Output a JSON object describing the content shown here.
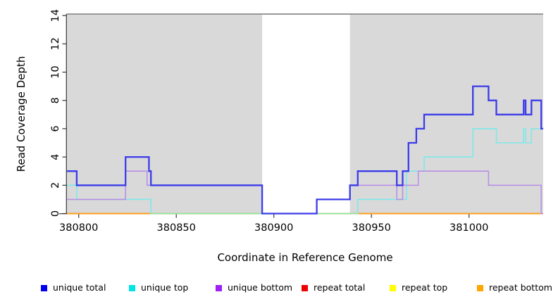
{
  "figure": {
    "x_axis": {
      "label": "Coordinate in Reference Genome",
      "ticks": [
        380800,
        380850,
        380900,
        380950,
        381000
      ]
    },
    "y_axis": {
      "label": "Read Coverage Depth",
      "ticks": [
        0,
        2,
        4,
        6,
        8,
        10,
        12,
        14
      ]
    }
  },
  "chart_data": {
    "type": "line",
    "step": true,
    "title": "",
    "xlabel": "Coordinate in Reference Genome",
    "ylabel": "Read Coverage Depth",
    "xlim": [
      380794,
      381038
    ],
    "ylim": [
      0,
      14.1
    ],
    "x_ticks": [
      380800,
      380850,
      380900,
      380950,
      381000
    ],
    "y_ticks": [
      0,
      2,
      4,
      6,
      8,
      10,
      12,
      14
    ],
    "grid": false,
    "shade_color": "#d9d9d9",
    "shaded_x_regions": [
      [
        380794,
        380894
      ],
      [
        380939,
        381038
      ]
    ],
    "series": [
      {
        "name": "repeat total",
        "color": "#e03030",
        "line_width": 1.4,
        "end": 381038,
        "points": [
          [
            380794,
            0
          ]
        ]
      },
      {
        "name": "repeat top",
        "color": "#f5f263",
        "line_width": 1.4,
        "end": 381038,
        "points": [
          [
            380794,
            0
          ]
        ]
      },
      {
        "name": "repeat bottom",
        "color": "#ff9e1f",
        "line_width": 2.0,
        "end": 381038,
        "points": [
          [
            380794,
            0
          ]
        ]
      },
      {
        "name": "unique top",
        "color": "#7de9e9",
        "line_width": 1.6,
        "end": 381038,
        "points": [
          [
            380794,
            2
          ],
          [
            380799,
            1
          ],
          [
            380837,
            0
          ],
          [
            380943,
            1
          ],
          [
            380968,
            3
          ],
          [
            380977,
            4
          ],
          [
            381002,
            6
          ],
          [
            381014,
            5
          ],
          [
            381028,
            6
          ],
          [
            381029,
            5
          ],
          [
            381032,
            6
          ]
        ]
      },
      {
        "name": "zero-line-blend",
        "color": "#93e6a4",
        "line_width": 1.4,
        "end": 380943,
        "points": [
          [
            380837,
            0
          ]
        ]
      },
      {
        "name": "unique bottom",
        "color": "#b98fe6",
        "line_width": 1.6,
        "end": 381038,
        "points": [
          [
            380794,
            1
          ],
          [
            380824,
            3
          ],
          [
            380835,
            2
          ],
          [
            380894,
            0
          ],
          [
            380922,
            1
          ],
          [
            380939,
            2
          ],
          [
            380963,
            1
          ],
          [
            380966,
            2
          ],
          [
            380974,
            3
          ],
          [
            381010,
            2
          ],
          [
            381037,
            0
          ]
        ]
      },
      {
        "name": "unique total",
        "color": "#3b3bea",
        "line_width": 2.3,
        "end": 381038,
        "points": [
          [
            380794,
            3
          ],
          [
            380799,
            2
          ],
          [
            380824,
            4
          ],
          [
            380836,
            3
          ],
          [
            380837,
            2
          ],
          [
            380894,
            0
          ],
          [
            380922,
            1
          ],
          [
            380939,
            2
          ],
          [
            380943,
            3
          ],
          [
            380963,
            2
          ],
          [
            380966,
            3
          ],
          [
            380969,
            5
          ],
          [
            380973,
            6
          ],
          [
            380977,
            7
          ],
          [
            381002,
            9
          ],
          [
            381010,
            8
          ],
          [
            381014,
            7
          ],
          [
            381028,
            8
          ],
          [
            381029,
            7
          ],
          [
            381032,
            8
          ],
          [
            381037,
            6
          ]
        ]
      }
    ]
  },
  "legend": {
    "items": [
      {
        "label": "unique total",
        "color": "#0000ee"
      },
      {
        "label": "unique top",
        "color": "#00e6e6"
      },
      {
        "label": "unique bottom",
        "color": "#a020f0"
      },
      {
        "label": "repeat total",
        "color": "#ee0000"
      },
      {
        "label": "repeat top",
        "color": "#ffff00"
      },
      {
        "label": "repeat bottom",
        "color": "#ffa500"
      }
    ]
  }
}
